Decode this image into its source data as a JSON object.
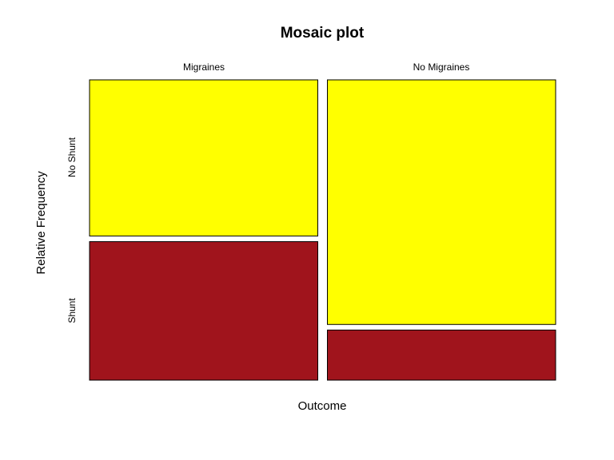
{
  "chart_data": {
    "type": "mosaic",
    "title": "Mosaic plot",
    "xlabel": "Outcome",
    "ylabel": "Relative Frequency",
    "categories": [
      "Migraines",
      "No Migraines"
    ],
    "rows": [
      "No Shunt",
      "Shunt"
    ],
    "column_proportions": [
      0.5,
      0.5
    ],
    "conditional_proportions": {
      "Migraines": {
        "No Shunt": 0.53,
        "Shunt": 0.47
      },
      "No Migraines": {
        "No Shunt": 0.83,
        "Shunt": 0.17
      }
    },
    "colors": {
      "No Shunt": "#ffff00",
      "Shunt": "#a0141c"
    }
  }
}
